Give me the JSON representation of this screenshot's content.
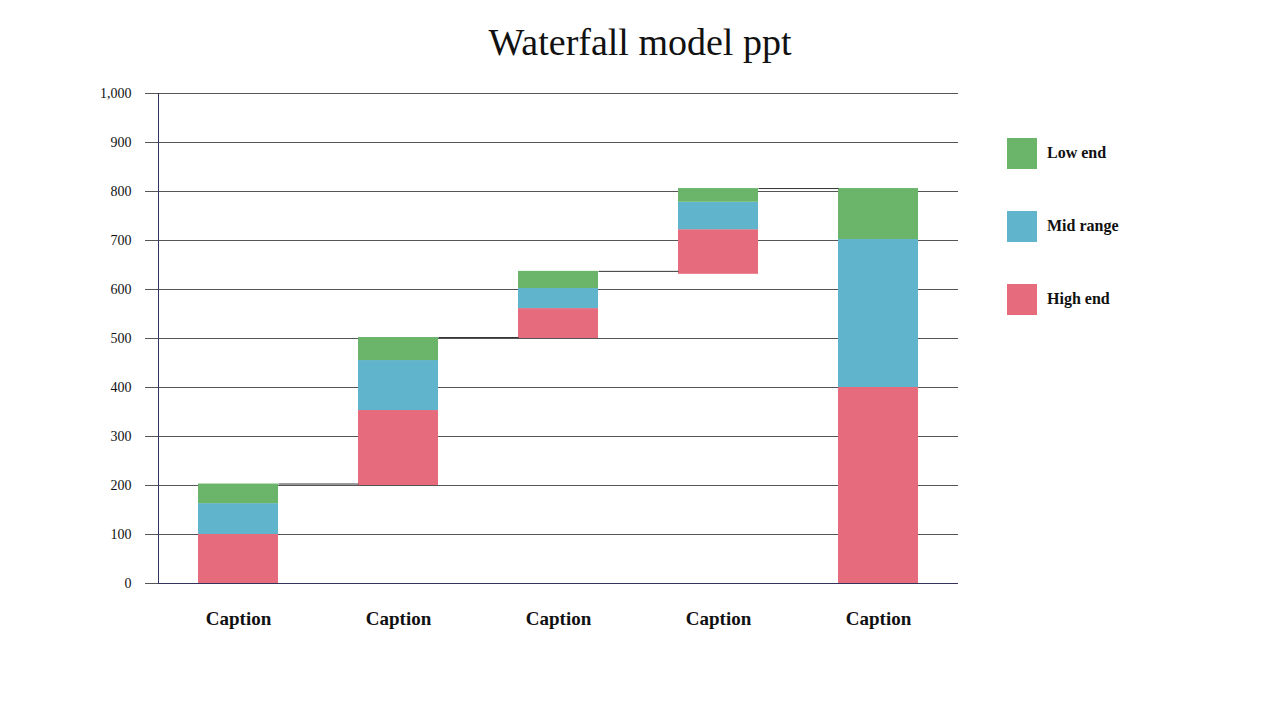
{
  "chart_data": {
    "type": "waterfall",
    "title": "Waterfall model ppt",
    "categories": [
      "Caption",
      "Caption",
      "Caption",
      "Caption",
      "Caption"
    ],
    "base": [
      0,
      200,
      500,
      631,
      0
    ],
    "series": [
      {
        "name": "Low end",
        "color": "#6bb56b",
        "values": [
          40,
          47,
          35,
          28,
          104
        ]
      },
      {
        "name": "Mid range",
        "color": "#60b4cc",
        "values": [
          63,
          102,
          41,
          56,
          302
        ]
      },
      {
        "name": "High end",
        "color": "#e66b7c",
        "values": [
          100,
          153,
          61,
          91,
          400
        ]
      }
    ],
    "ylim": [
      0,
      1000
    ],
    "yticks": [
      0,
      100,
      200,
      300,
      400,
      500,
      600,
      700,
      800,
      900,
      1000
    ],
    "grid": true,
    "stacked": true,
    "legend": "right"
  }
}
